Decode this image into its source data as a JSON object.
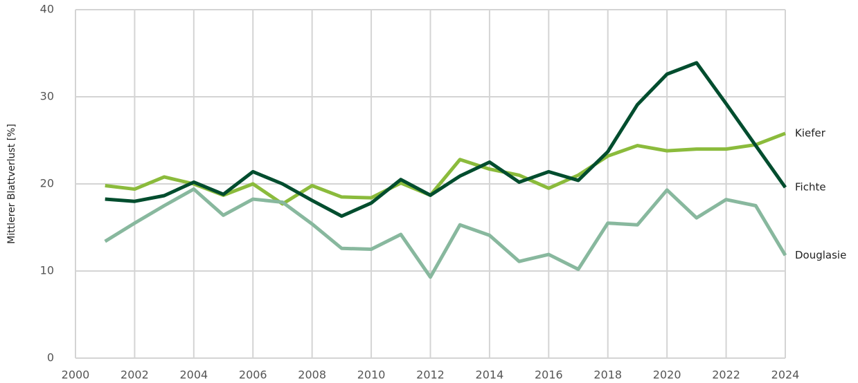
{
  "chart_data": {
    "type": "line",
    "y_label": "Mittlerer Blattverlust [%]",
    "x": [
      2001,
      2002,
      2003,
      2004,
      2005,
      2006,
      2007,
      2008,
      2009,
      2010,
      2011,
      2012,
      2013,
      2014,
      2015,
      2016,
      2017,
      2018,
      2019,
      2020,
      2021,
      2022,
      2023,
      2024
    ],
    "series": [
      {
        "name": "Kiefer",
        "color": "#8bbb3c",
        "values": [
          19.8,
          19.4,
          20.8,
          20.0,
          18.7,
          20.0,
          17.7,
          19.8,
          18.5,
          18.4,
          20.1,
          18.7,
          22.8,
          21.7,
          21.0,
          19.5,
          21.0,
          23.2,
          24.4,
          23.8,
          24.0,
          24.0,
          24.5,
          25.8
        ]
      },
      {
        "name": "Fichte",
        "color": "#004d2e",
        "values": [
          18.25,
          18.0,
          18.65,
          20.2,
          18.8,
          21.4,
          20.0,
          18.1,
          16.3,
          17.8,
          20.5,
          18.7,
          20.9,
          22.5,
          20.2,
          21.4,
          20.4,
          23.7,
          29.1,
          32.6,
          33.9,
          29.2,
          24.4,
          19.6
        ]
      },
      {
        "name": "Douglasie",
        "color": "#88b89e",
        "values": [
          13.4,
          15.5,
          17.5,
          19.4,
          16.4,
          18.25,
          17.9,
          15.4,
          12.6,
          12.5,
          14.2,
          9.3,
          15.3,
          14.1,
          11.1,
          11.9,
          10.2,
          15.5,
          15.3,
          19.3,
          16.1,
          18.2,
          17.5,
          11.8
        ]
      }
    ],
    "xlim": [
      2000,
      2024
    ],
    "xticks": [
      2000,
      2002,
      2004,
      2006,
      2008,
      2010,
      2012,
      2014,
      2016,
      2018,
      2020,
      2022,
      2024
    ],
    "ylim": [
      0,
      40
    ],
    "yticks": [
      0,
      10,
      20,
      30,
      40
    ],
    "grid": true
  }
}
